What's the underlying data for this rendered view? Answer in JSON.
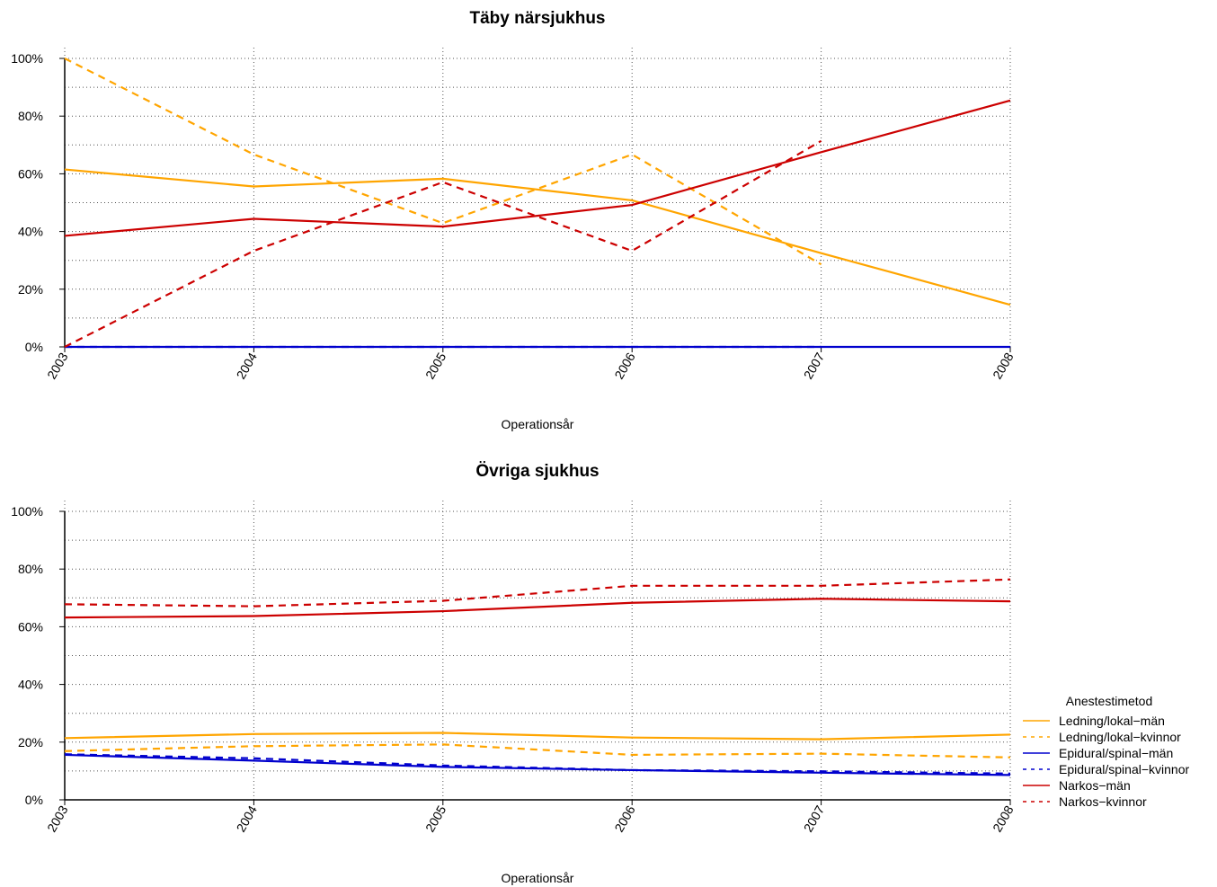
{
  "chart_data": [
    {
      "type": "line",
      "title": "Täby närsjukhus",
      "xlabel": "Operationsår",
      "ylabel": "",
      "x": [
        "2003",
        "2004",
        "2005",
        "2006",
        "2007",
        "2008"
      ],
      "ylim": [
        0,
        100
      ],
      "yticks": [
        "0%",
        "20%",
        "40%",
        "60%",
        "80%",
        "100%"
      ],
      "grid": true,
      "series": [
        {
          "name": "Ledning/lokal−män",
          "color": "#FFA500",
          "dash": "solid",
          "values": [
            61.5,
            55.6,
            58.3,
            50.8,
            32.5,
            14.6
          ]
        },
        {
          "name": "Ledning/lokal−kvinnor",
          "color": "#FFA500",
          "dash": "dashed",
          "values": [
            100,
            66.7,
            42.9,
            66.7,
            28.6,
            null
          ]
        },
        {
          "name": "Epidural/spinal−män",
          "color": "#0000CD",
          "dash": "solid",
          "values": [
            0,
            0,
            0,
            0,
            0,
            0
          ]
        },
        {
          "name": "Epidural/spinal−kvinnor",
          "color": "#0000CD",
          "dash": "dashed",
          "values": [
            0,
            0,
            0,
            0,
            0,
            null
          ]
        },
        {
          "name": "Narkos−män",
          "color": "#CC0000",
          "dash": "solid",
          "values": [
            38.5,
            44.4,
            41.7,
            49.2,
            67.5,
            85.4
          ]
        },
        {
          "name": "Narkos−kvinnor",
          "color": "#CC0000",
          "dash": "dashed",
          "values": [
            0,
            33.3,
            57.1,
            33.3,
            71.4,
            null
          ]
        }
      ]
    },
    {
      "type": "line",
      "title": "Övriga sjukhus",
      "xlabel": "Operationsår",
      "ylabel": "",
      "x": [
        "2003",
        "2004",
        "2005",
        "2006",
        "2007",
        "2008"
      ],
      "ylim": [
        0,
        100
      ],
      "yticks": [
        "0%",
        "20%",
        "40%",
        "60%",
        "80%",
        "100%"
      ],
      "grid": true,
      "series": [
        {
          "name": "Ledning/lokal−män",
          "color": "#FFA500",
          "dash": "solid",
          "values": [
            21.4,
            22.8,
            23.2,
            21.6,
            21.0,
            22.6
          ]
        },
        {
          "name": "Ledning/lokal−kvinnor",
          "color": "#FFA500",
          "dash": "dashed",
          "values": [
            16.9,
            18.6,
            19.2,
            15.6,
            16.0,
            14.7
          ]
        },
        {
          "name": "Epidural/spinal−män",
          "color": "#0000CD",
          "dash": "solid",
          "values": [
            15.6,
            13.6,
            11.4,
            10.3,
            9.4,
            8.6
          ]
        },
        {
          "name": "Epidural/spinal−kvinnor",
          "color": "#0000CD",
          "dash": "dashed",
          "values": [
            15.8,
            14.4,
            11.9,
            10.3,
            9.9,
            9.1
          ]
        },
        {
          "name": "Narkos−män",
          "color": "#CC0000",
          "dash": "solid",
          "values": [
            63.2,
            63.7,
            65.4,
            68.3,
            69.7,
            68.8
          ]
        },
        {
          "name": "Narkos−kvinnor",
          "color": "#CC0000",
          "dash": "dashed",
          "values": [
            67.8,
            67.1,
            69.0,
            74.2,
            74.2,
            76.4
          ]
        }
      ]
    }
  ],
  "legend": {
    "title": "Anestestimetod",
    "placement": "right",
    "items": [
      {
        "label": "Ledning/lokal−män",
        "color": "#FFA500",
        "dash": "solid"
      },
      {
        "label": "Ledning/lokal−kvinnor",
        "color": "#FFA500",
        "dash": "dashed"
      },
      {
        "label": "Epidural/spinal−män",
        "color": "#0000CD",
        "dash": "solid"
      },
      {
        "label": "Epidural/spinal−kvinnor",
        "color": "#0000CD",
        "dash": "dashed"
      },
      {
        "label": "Narkos−män",
        "color": "#CC0000",
        "dash": "solid"
      },
      {
        "label": "Narkos−kvinnor",
        "color": "#CC0000",
        "dash": "dashed"
      }
    ]
  }
}
